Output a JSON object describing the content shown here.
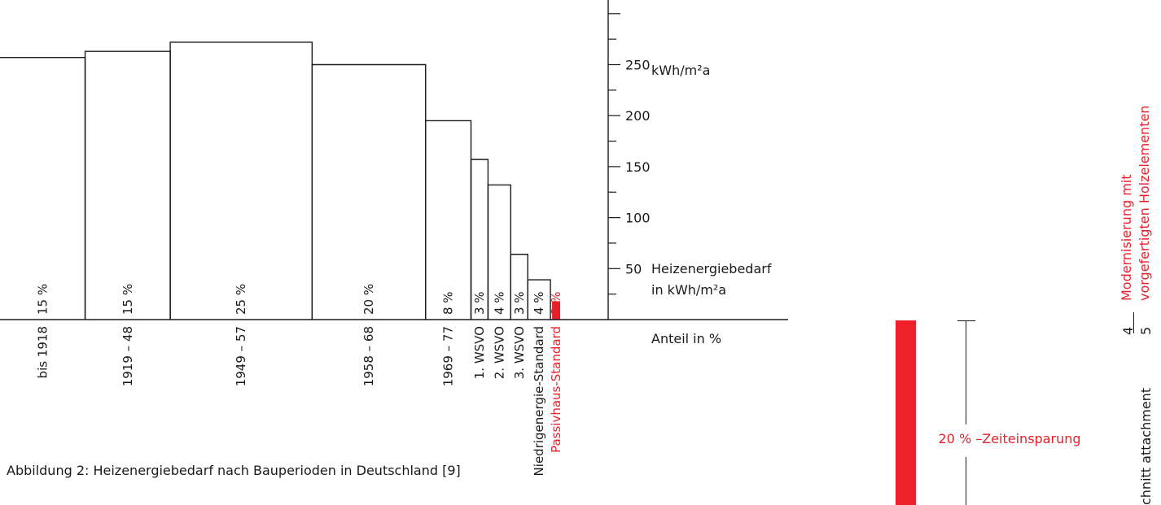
{
  "chart_data": {
    "type": "bar",
    "title": "",
    "categories": [
      "bis 1918",
      "1919 – 48",
      "1949 – 57",
      "1958 – 68",
      "1969 – 77",
      "1. WSVO",
      "2. WSVO",
      "3. WSVO",
      "Niedrigenergie-Standard",
      "Passivhaus-Standard"
    ],
    "shares": [
      15,
      15,
      25,
      20,
      8,
      3,
      4,
      3,
      4,
      2
    ],
    "share_labels": [
      "15 %",
      "15 %",
      "25 %",
      "20 %",
      "8 %",
      "3 %",
      "4 %",
      "3 %",
      "4 %",
      "2 %"
    ],
    "values": [
      257,
      263,
      272,
      250,
      195,
      157,
      132,
      64,
      39,
      18
    ],
    "highlight_index": 9,
    "y_ticks": [
      50,
      100,
      150,
      200,
      250
    ],
    "y_tick_labels": [
      "50",
      "100",
      "150",
      "200",
      "250"
    ],
    "y_unit_top": "kWh/m²a",
    "ylabel": "Heizenergiebedarf",
    "ylabel2": "in kWh/m²a",
    "xlabel": "Anteil in %",
    "ylim": [
      0,
      310
    ],
    "caption": "Abbildung 2: Heizenergiebedarf nach Bauperioden in Deutschland [9]",
    "colors": {
      "line": "#1a1a1a",
      "highlight": "#e8202a"
    }
  },
  "side": {
    "savings_label": "20 % –Zeiteinsparung",
    "section_title_line1": "Modernisierung mit",
    "section_title_line2": "vorgefertigten Holzelementen",
    "page_left": "4",
    "page_right": "5",
    "footer_text": "chnitt attachment"
  }
}
